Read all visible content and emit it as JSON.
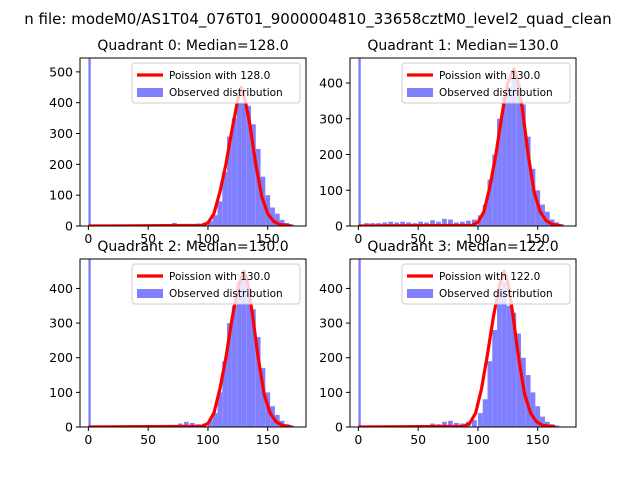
{
  "suptitle": "n file: modeM0/AS1T04_076T01_9000004810_33658cztM0_level2_quad_clean",
  "colors": {
    "hist": "#8080ff",
    "curve": "#ff0000",
    "axis": "#000000"
  },
  "legend": {
    "observed": "Observed distribution"
  },
  "chart_data": [
    {
      "type": "bar",
      "title": "Quadrant 0: Median=128.0",
      "curve_label": "Poission with 128.0",
      "median": 128.0,
      "xlim": [
        -7,
        182
      ],
      "ylim": [
        0,
        545
      ],
      "xticks": [
        0,
        50,
        100,
        150
      ],
      "yticks": [
        0,
        100,
        200,
        300,
        400,
        500
      ],
      "spike": {
        "x": 0,
        "count": 545
      },
      "hist_bins": [
        [
          60,
          3
        ],
        [
          70,
          10
        ],
        [
          80,
          6
        ],
        [
          90,
          8
        ],
        [
          95,
          10
        ],
        [
          100,
          16
        ],
        [
          104,
          35
        ],
        [
          108,
          80
        ],
        [
          112,
          175
        ],
        [
          116,
          290
        ],
        [
          120,
          350
        ],
        [
          124,
          400
        ],
        [
          128,
          400
        ],
        [
          132,
          390
        ],
        [
          136,
          330
        ],
        [
          140,
          250
        ],
        [
          144,
          160
        ],
        [
          148,
          100
        ],
        [
          152,
          60
        ],
        [
          156,
          40
        ],
        [
          160,
          20
        ],
        [
          164,
          10
        ],
        [
          168,
          5
        ]
      ],
      "curve": [
        [
          0,
          0
        ],
        [
          95,
          2
        ],
        [
          100,
          10
        ],
        [
          105,
          40
        ],
        [
          110,
          110
        ],
        [
          115,
          200
        ],
        [
          120,
          310
        ],
        [
          125,
          410
        ],
        [
          128,
          450
        ],
        [
          131,
          410
        ],
        [
          135,
          330
        ],
        [
          140,
          200
        ],
        [
          145,
          95
        ],
        [
          150,
          40
        ],
        [
          155,
          15
        ],
        [
          160,
          5
        ],
        [
          170,
          0
        ]
      ]
    },
    {
      "type": "bar",
      "title": "Quadrant 1: Median=130.0",
      "curve_label": "Poission with 130.0",
      "median": 130.0,
      "xlim": [
        -7,
        182
      ],
      "ylim": [
        0,
        470
      ],
      "xticks": [
        0,
        50,
        100,
        150
      ],
      "yticks": [
        0,
        100,
        200,
        300,
        400
      ],
      "spike": {
        "x": 0,
        "count": 470
      },
      "hist_bins": [
        [
          5,
          8
        ],
        [
          10,
          8
        ],
        [
          15,
          8
        ],
        [
          20,
          10
        ],
        [
          25,
          12
        ],
        [
          30,
          10
        ],
        [
          35,
          12
        ],
        [
          40,
          10
        ],
        [
          45,
          8
        ],
        [
          50,
          12
        ],
        [
          55,
          10
        ],
        [
          60,
          16
        ],
        [
          65,
          12
        ],
        [
          70,
          20
        ],
        [
          75,
          18
        ],
        [
          80,
          10
        ],
        [
          85,
          12
        ],
        [
          90,
          15
        ],
        [
          95,
          18
        ],
        [
          100,
          30
        ],
        [
          104,
          60
        ],
        [
          108,
          130
        ],
        [
          112,
          200
        ],
        [
          116,
          300
        ],
        [
          120,
          360
        ],
        [
          124,
          390
        ],
        [
          128,
          410
        ],
        [
          132,
          400
        ],
        [
          136,
          340
        ],
        [
          140,
          250
        ],
        [
          144,
          160
        ],
        [
          148,
          100
        ],
        [
          152,
          60
        ],
        [
          156,
          40
        ],
        [
          160,
          18
        ],
        [
          164,
          10
        ],
        [
          168,
          5
        ]
      ],
      "curve": [
        [
          0,
          0
        ],
        [
          95,
          2
        ],
        [
          100,
          10
        ],
        [
          105,
          40
        ],
        [
          110,
          110
        ],
        [
          115,
          200
        ],
        [
          120,
          310
        ],
        [
          125,
          400
        ],
        [
          130,
          440
        ],
        [
          133,
          410
        ],
        [
          137,
          330
        ],
        [
          142,
          200
        ],
        [
          147,
          95
        ],
        [
          152,
          40
        ],
        [
          157,
          15
        ],
        [
          162,
          5
        ],
        [
          170,
          0
        ]
      ]
    },
    {
      "type": "bar",
      "title": "Quadrant 2: Median=130.0",
      "curve_label": "Poission with 130.0",
      "median": 130.0,
      "xlim": [
        -7,
        182
      ],
      "ylim": [
        0,
        485
      ],
      "xticks": [
        0,
        50,
        100,
        150
      ],
      "yticks": [
        0,
        100,
        200,
        300,
        400
      ],
      "spike": {
        "x": 0,
        "count": 485
      },
      "hist_bins": [
        [
          70,
          5
        ],
        [
          75,
          10
        ],
        [
          80,
          15
        ],
        [
          85,
          12
        ],
        [
          90,
          8
        ],
        [
          95,
          10
        ],
        [
          100,
          20
        ],
        [
          104,
          40
        ],
        [
          108,
          100
        ],
        [
          112,
          190
        ],
        [
          116,
          300
        ],
        [
          120,
          350
        ],
        [
          124,
          420
        ],
        [
          128,
          430
        ],
        [
          132,
          400
        ],
        [
          136,
          340
        ],
        [
          140,
          260
        ],
        [
          144,
          170
        ],
        [
          148,
          100
        ],
        [
          152,
          60
        ],
        [
          156,
          35
        ],
        [
          160,
          18
        ],
        [
          164,
          8
        ],
        [
          168,
          4
        ]
      ],
      "curve": [
        [
          0,
          0
        ],
        [
          95,
          2
        ],
        [
          100,
          10
        ],
        [
          105,
          40
        ],
        [
          110,
          110
        ],
        [
          115,
          200
        ],
        [
          120,
          310
        ],
        [
          125,
          400
        ],
        [
          130,
          450
        ],
        [
          133,
          420
        ],
        [
          137,
          330
        ],
        [
          142,
          200
        ],
        [
          147,
          95
        ],
        [
          152,
          40
        ],
        [
          157,
          15
        ],
        [
          162,
          5
        ],
        [
          170,
          0
        ]
      ]
    },
    {
      "type": "bar",
      "title": "Quadrant 3: Median=122.0",
      "curve_label": "Poission with 122.0",
      "median": 122.0,
      "xlim": [
        -7,
        182
      ],
      "ylim": [
        0,
        485
      ],
      "xticks": [
        0,
        50,
        100,
        150
      ],
      "yticks": [
        0,
        100,
        200,
        300,
        400
      ],
      "spike": {
        "x": 0,
        "count": 485
      },
      "hist_bins": [
        [
          55,
          5
        ],
        [
          60,
          10
        ],
        [
          65,
          8
        ],
        [
          70,
          15
        ],
        [
          75,
          18
        ],
        [
          80,
          12
        ],
        [
          85,
          10
        ],
        [
          90,
          15
        ],
        [
          95,
          20
        ],
        [
          100,
          40
        ],
        [
          104,
          80
        ],
        [
          108,
          190
        ],
        [
          112,
          280
        ],
        [
          116,
          390
        ],
        [
          120,
          420
        ],
        [
          124,
          350
        ],
        [
          128,
          330
        ],
        [
          132,
          270
        ],
        [
          136,
          200
        ],
        [
          140,
          150
        ],
        [
          144,
          100
        ],
        [
          148,
          60
        ],
        [
          152,
          30
        ],
        [
          156,
          15
        ],
        [
          160,
          8
        ],
        [
          164,
          4
        ]
      ],
      "curve": [
        [
          0,
          0
        ],
        [
          88,
          2
        ],
        [
          93,
          10
        ],
        [
          98,
          40
        ],
        [
          103,
          110
        ],
        [
          108,
          210
        ],
        [
          113,
          320
        ],
        [
          118,
          410
        ],
        [
          122,
          450
        ],
        [
          125,
          420
        ],
        [
          129,
          330
        ],
        [
          134,
          200
        ],
        [
          139,
          95
        ],
        [
          144,
          40
        ],
        [
          149,
          15
        ],
        [
          154,
          5
        ],
        [
          165,
          0
        ]
      ]
    }
  ]
}
